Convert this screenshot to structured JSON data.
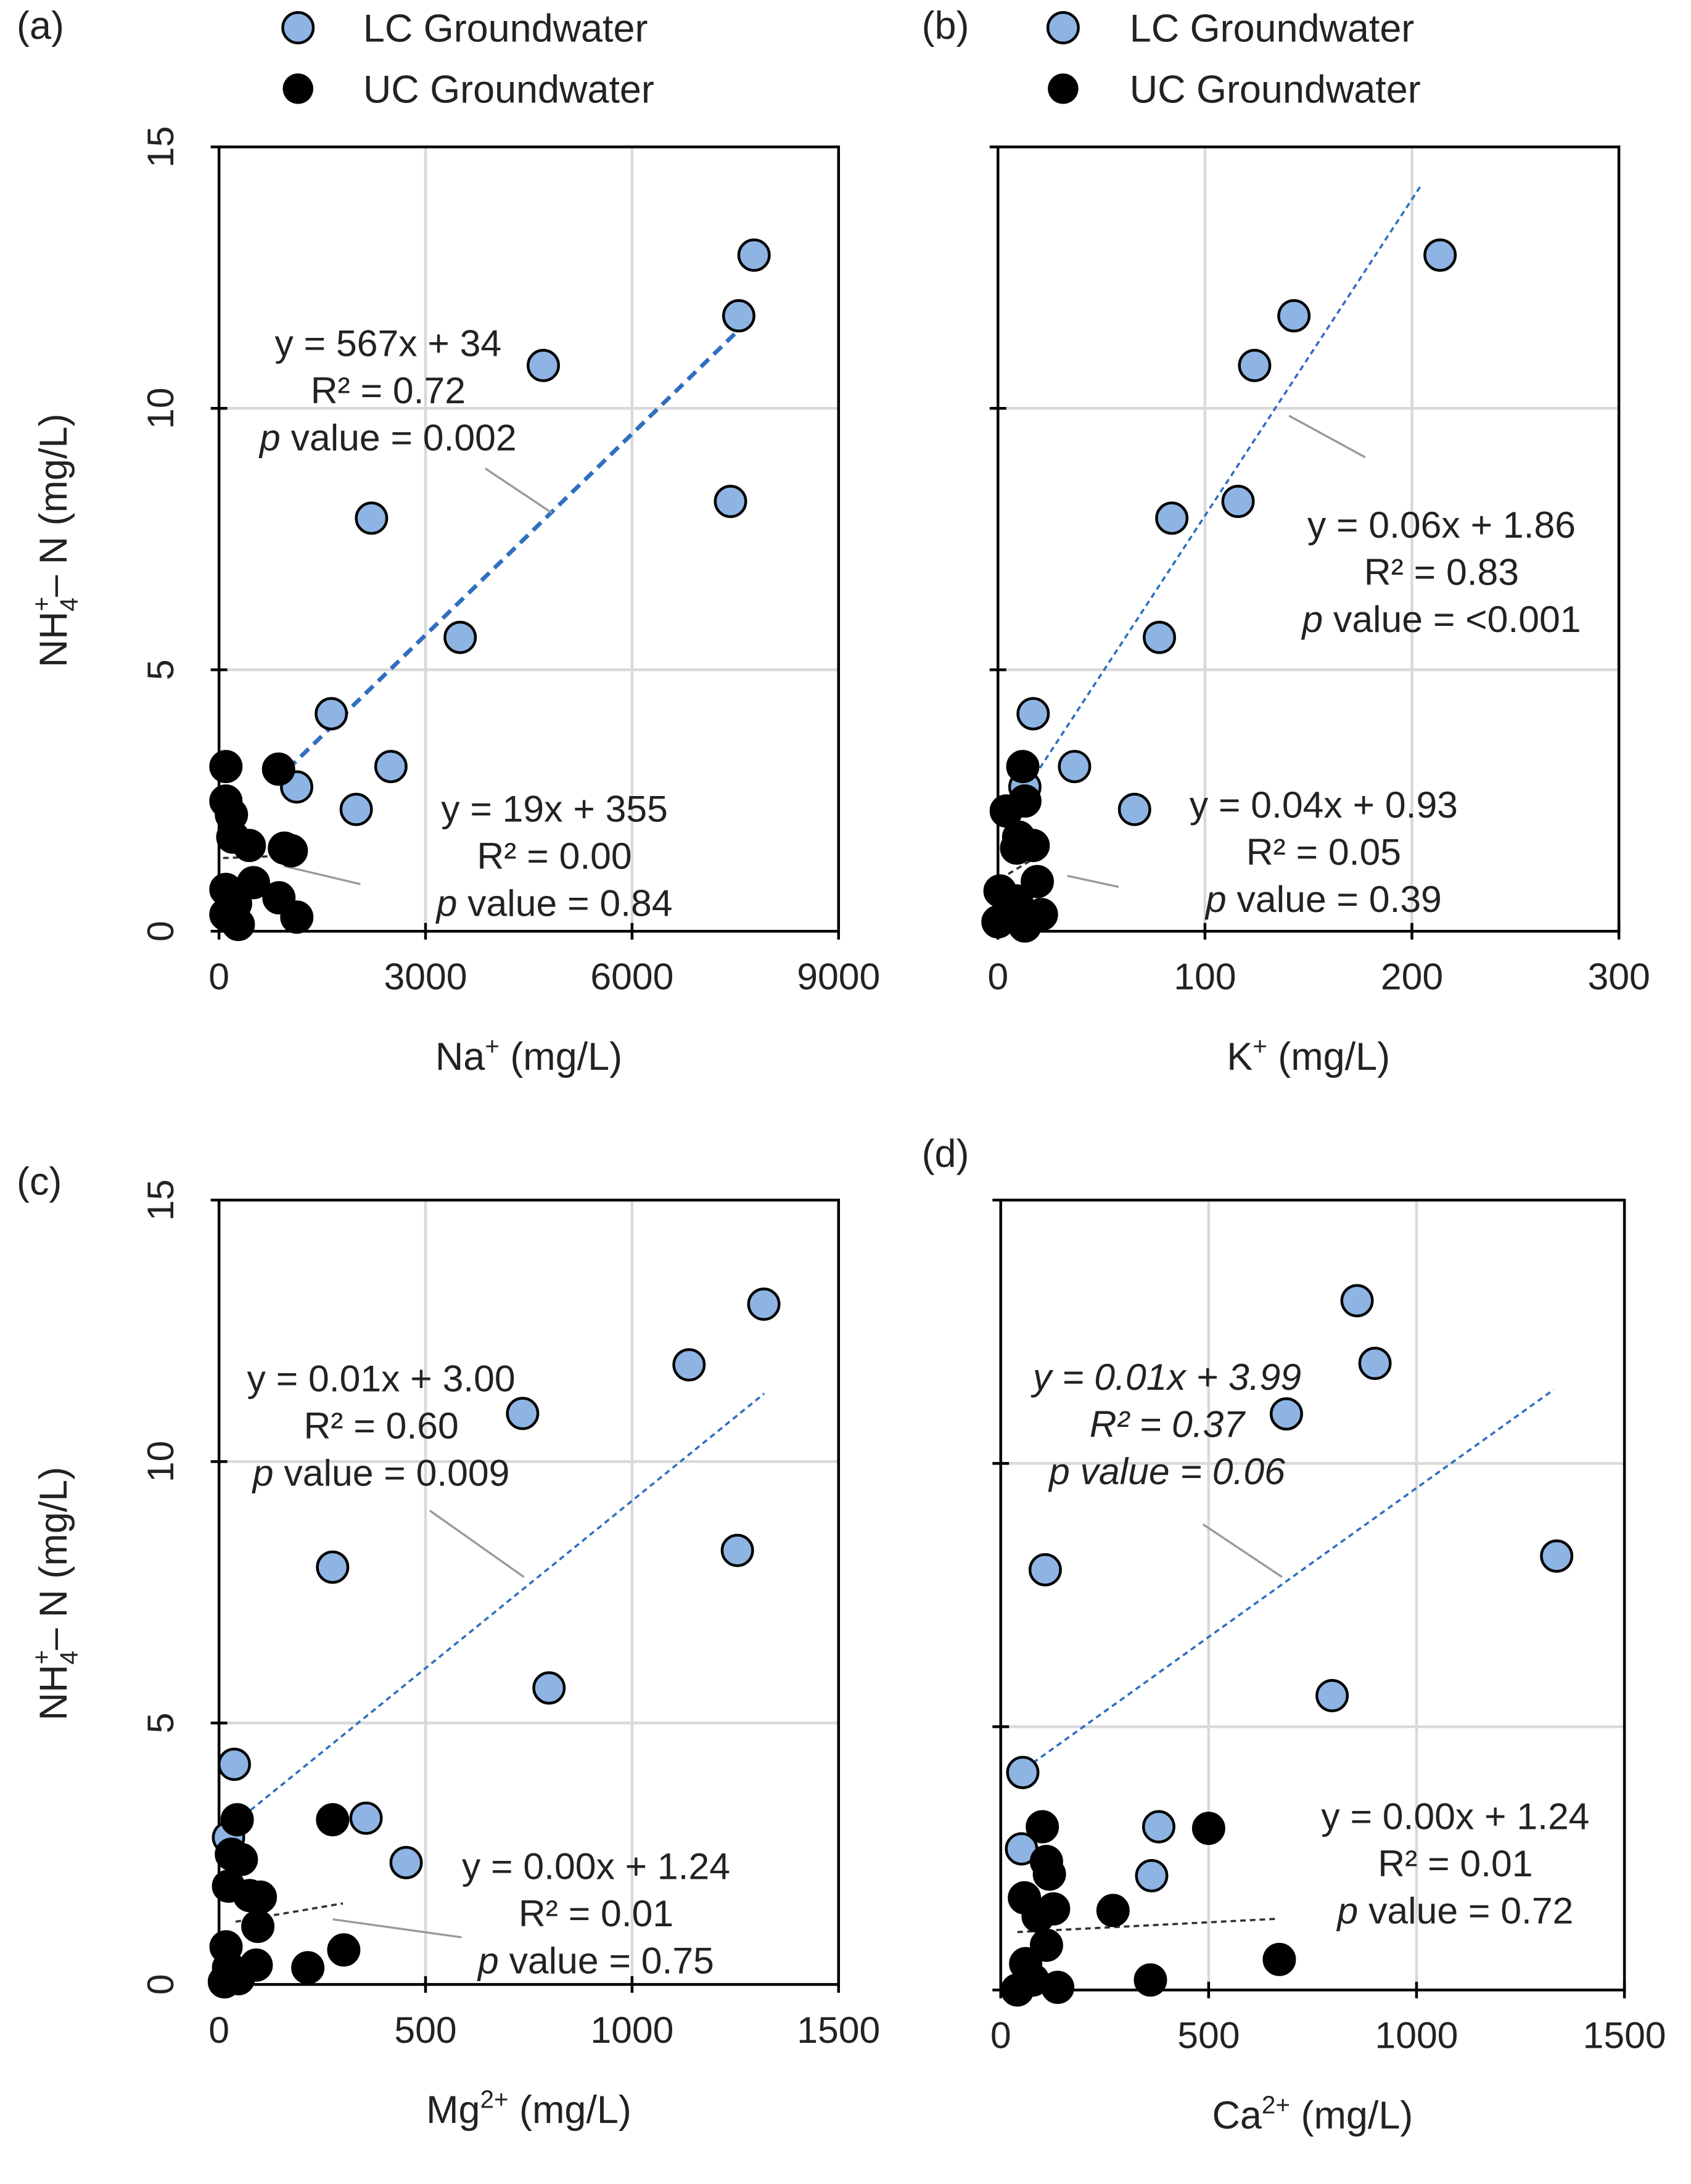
{
  "legend": {
    "lc_label": "LC Groundwater",
    "uc_label": "UC Groundwater",
    "lc_color": "#8eb4e3",
    "uc_color": "#000000",
    "lc_trend_color": "#2f6fc0",
    "uc_trend_color": "#333333"
  },
  "chart_data": [
    {
      "type": "scatter",
      "panel_label": "(a)",
      "xlabel": {
        "base": "Na",
        "sup": "+",
        "rest": " (mg/L)"
      },
      "ylabel": {
        "base": "NH",
        "sub": "4",
        "sup": "+",
        "rest": "– N (mg/L)"
      },
      "xlim": [
        0,
        9000
      ],
      "ylim": [
        0,
        15
      ],
      "xticks": [
        "0",
        "3000",
        "6000",
        "9000"
      ],
      "yticks": [
        "0",
        "5",
        "10",
        "15"
      ],
      "grid": true,
      "series": [
        {
          "name": "LC Groundwater",
          "points": [
            [
              7772,
              12.93
            ],
            [
              7550,
              11.77
            ],
            [
              4711,
              10.82
            ],
            [
              7430,
              8.22
            ],
            [
              2215,
              7.9
            ],
            [
              3503,
              5.62
            ],
            [
              1631,
              4.16
            ],
            [
              2497,
              3.15
            ],
            [
              1128,
              2.76
            ],
            [
              1993,
              2.33
            ]
          ]
        },
        {
          "name": "UC Groundwater",
          "points": [
            [
              100,
              3.15
            ],
            [
              865,
              3.1
            ],
            [
              100,
              2.49
            ],
            [
              180,
              2.23
            ],
            [
              200,
              1.8
            ],
            [
              440,
              1.64
            ],
            [
              950,
              1.59
            ],
            [
              1050,
              1.54
            ],
            [
              500,
              0.93
            ],
            [
              870,
              0.64
            ],
            [
              1130,
              0.27
            ],
            [
              100,
              0.8
            ],
            [
              240,
              0.53
            ],
            [
              100,
              0.32
            ],
            [
              280,
              0.13
            ]
          ]
        }
      ],
      "trendlines": [
        {
          "series": "LC Groundwater",
          "x": [
            1000,
            7550
          ],
          "y": [
            3.1,
            11.5
          ]
        },
        {
          "series": "UC Groundwater",
          "x": [
            60,
            1100
          ],
          "y": [
            1.4,
            1.45
          ]
        }
      ],
      "annotations": [
        {
          "series": "LC Groundwater",
          "eq": "y = 567x + 34",
          "r2": "R² = 0.72",
          "p": "p",
          "pval": " value  = 0.002",
          "italic_all": false
        },
        {
          "series": "UC Groundwater",
          "eq": "y = 19x + 355",
          "r2": "R² = 0.00",
          "p": "p",
          "pval": " value = 0.84",
          "italic_all": false
        }
      ]
    },
    {
      "type": "scatter",
      "panel_label": "(b)",
      "xlabel": {
        "base": "K",
        "sup": "+",
        "rest": " (mg/L)"
      },
      "ylabel": null,
      "xlim": [
        0,
        300
      ],
      "ylim": [
        0,
        15
      ],
      "xticks": [
        "0",
        "100",
        "200",
        "300"
      ],
      "yticks": [],
      "grid": true,
      "series": [
        {
          "name": "LC Groundwater",
          "points": [
            [
              213.6,
              12.93
            ],
            [
              143,
              11.77
            ],
            [
              124,
              10.82
            ],
            [
              116,
              8.22
            ],
            [
              84,
              7.9
            ],
            [
              78,
              5.62
            ],
            [
              17,
              4.16
            ],
            [
              37,
              3.15
            ],
            [
              13,
              2.76
            ],
            [
              66,
              2.33
            ]
          ]
        },
        {
          "name": "UC Groundwater",
          "points": [
            [
              12,
              3.15
            ],
            [
              13,
              2.49
            ],
            [
              4,
              2.3
            ],
            [
              10,
              1.8
            ],
            [
              17,
              1.64
            ],
            [
              9,
              1.59
            ],
            [
              19,
              0.95
            ],
            [
              1,
              0.77
            ],
            [
              9,
              0.58
            ],
            [
              21,
              0.32
            ],
            [
              0,
              0.18
            ],
            [
              13,
              0.1
            ]
          ]
        }
      ],
      "trendlines": [
        {
          "series": "LC Groundwater",
          "x": [
            10,
            205
          ],
          "y": [
            2.5,
            14.3
          ]
        },
        {
          "series": "UC Groundwater",
          "x": [
            1,
            22
          ],
          "y": [
            1.0,
            1.5
          ]
        }
      ],
      "annotations": [
        {
          "series": "LC Groundwater",
          "eq": "y = 0.06x + 1.86",
          "r2": "R² = 0.83",
          "p": "p",
          "pval": " value = <0.001",
          "italic_all": false
        },
        {
          "series": "UC Groundwater",
          "eq": "y = 0.04x + 0.93",
          "r2": "R² = 0.05",
          "p": "p",
          "pval": " value = 0.39",
          "italic_all": false
        }
      ]
    },
    {
      "type": "scatter",
      "panel_label": "(c)",
      "xlabel": {
        "base": "Mg",
        "sup": "2+",
        "rest": " (mg/L)"
      },
      "ylabel": {
        "base": "NH",
        "sub": "4",
        "sup": "+",
        "rest": "– N (mg/L)"
      },
      "xlim": [
        0,
        1500
      ],
      "ylim": [
        0,
        15
      ],
      "xticks": [
        "0",
        "500",
        "1000",
        "1500"
      ],
      "yticks": [
        "0",
        "5",
        "10",
        "15"
      ],
      "grid": true,
      "series": [
        {
          "name": "LC Groundwater",
          "points": [
            [
              1319,
              13.01
            ],
            [
              1138,
              11.85
            ],
            [
              735,
              10.92
            ],
            [
              1255,
              8.3
            ],
            [
              275,
              7.98
            ],
            [
              799,
              5.67
            ],
            [
              37,
              4.21
            ],
            [
              356,
              3.18
            ],
            [
              23,
              2.81
            ],
            [
              453,
              2.33
            ]
          ]
        },
        {
          "name": "UC Groundwater",
          "points": [
            [
              44,
              3.15
            ],
            [
              275,
              3.15
            ],
            [
              30,
              2.49
            ],
            [
              54,
              2.39
            ],
            [
              23,
              1.88
            ],
            [
              74,
              1.7
            ],
            [
              100,
              1.67
            ],
            [
              94,
              1.11
            ],
            [
              17,
              0.72
            ],
            [
              90,
              0.37
            ],
            [
              302,
              0.66
            ],
            [
              215,
              0.32
            ],
            [
              23,
              0.32
            ],
            [
              47,
              0.11
            ],
            [
              13,
              0.05
            ]
          ]
        }
      ],
      "trendlines": [
        {
          "series": "LC Groundwater",
          "x": [
            40,
            1320
          ],
          "y": [
            3.1,
            11.3
          ]
        },
        {
          "series": "UC Groundwater",
          "x": [
            40,
            300
          ],
          "y": [
            1.2,
            1.55
          ]
        }
      ],
      "annotations": [
        {
          "series": "LC Groundwater",
          "eq": "y = 0.01x + 3.00",
          "r2": "R² = 0.60",
          "p": "p",
          "pval": " value = 0.009",
          "italic_all": false
        },
        {
          "series": "UC Groundwater",
          "eq": "y = 0.00x + 1.24",
          "r2": "R² = 0.01",
          "p": "p",
          "pval": " value = 0.75",
          "italic_all": false
        }
      ]
    },
    {
      "type": "scatter",
      "panel_label": "(d)",
      "xlabel": {
        "base": "Ca",
        "sup": "2+",
        "rest": " (mg/L)"
      },
      "ylabel": null,
      "xlim": [
        0,
        1500
      ],
      "ylim": [
        0,
        15
      ],
      "xticks": [
        "0",
        "500",
        "1000",
        "1500"
      ],
      "yticks": [],
      "grid": true,
      "series": [
        {
          "name": "LC Groundwater",
          "points": [
            [
              857,
              13.09
            ],
            [
              900,
              11.9
            ],
            [
              687,
              10.94
            ],
            [
              1337,
              8.24
            ],
            [
              107,
              7.98
            ],
            [
              797,
              5.59
            ],
            [
              53,
              4.13
            ],
            [
              380,
              3.1
            ],
            [
              50,
              2.68
            ],
            [
              363,
              2.17
            ]
          ]
        },
        {
          "name": "UC Groundwater",
          "points": [
            [
              500,
              3.07
            ],
            [
              100,
              3.1
            ],
            [
              110,
              2.44
            ],
            [
              117,
              2.2
            ],
            [
              57,
              1.75
            ],
            [
              127,
              1.54
            ],
            [
              270,
              1.51
            ],
            [
              90,
              1.4
            ],
            [
              110,
              0.85
            ],
            [
              670,
              0.58
            ],
            [
              60,
              0.5
            ],
            [
              360,
              0.19
            ],
            [
              137,
              0.05
            ],
            [
              40,
              0.0
            ],
            [
              77,
              0.19
            ]
          ]
        }
      ],
      "trendlines": [
        {
          "series": "LC Groundwater",
          "x": [
            40,
            1330
          ],
          "y": [
            4.1,
            11.4
          ]
        },
        {
          "series": "UC Groundwater",
          "x": [
            40,
            660
          ],
          "y": [
            1.1,
            1.35
          ]
        }
      ],
      "annotations": [
        {
          "series": "LC Groundwater",
          "eq": "y = 0.01x + 3.99",
          "r2": "R² = 0.37",
          "p": "p",
          "pval": " value = 0.06",
          "italic_all": true
        },
        {
          "series": "UC Groundwater",
          "eq": "y = 0.00x + 1.24",
          "r2": "R² = 0.01",
          "p": "p",
          "pval": " value = 0.72",
          "italic_all": false
        }
      ]
    }
  ]
}
